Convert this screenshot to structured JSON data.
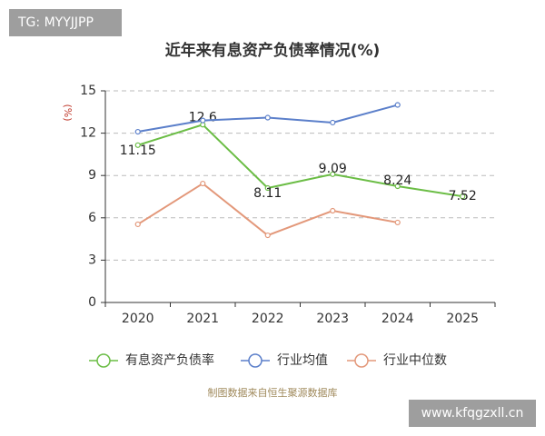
{
  "watermarks": [
    "TG: MYYJJPP",
    "www.kfqgzxll.cn"
  ],
  "chart_data": {
    "type": "line",
    "title": "近年来有息资产负债率情况(%)",
    "y_label": "(%)",
    "source": "制图数据来自恒生聚源数据库",
    "categories": [
      "2020",
      "2021",
      "2022",
      "2023",
      "2024",
      "2025"
    ],
    "series": [
      {
        "name": "有息资产负债率",
        "color": "#6bbd45",
        "values": [
          11.15,
          12.6,
          8.11,
          9.09,
          8.24,
          7.52
        ],
        "show_labels": true
      },
      {
        "name": "行业均值",
        "color": "#5b7fca",
        "values": [
          12.1,
          12.9,
          13.1,
          12.75,
          14.0,
          null
        ]
      },
      {
        "name": "行业中位数",
        "color": "#e3987a",
        "values": [
          5.54,
          8.43,
          4.76,
          6.5,
          5.67,
          null
        ]
      }
    ],
    "ylim": [
      0,
      15
    ],
    "yticks": [
      0,
      3,
      6,
      9,
      12,
      15
    ],
    "grid": true
  }
}
